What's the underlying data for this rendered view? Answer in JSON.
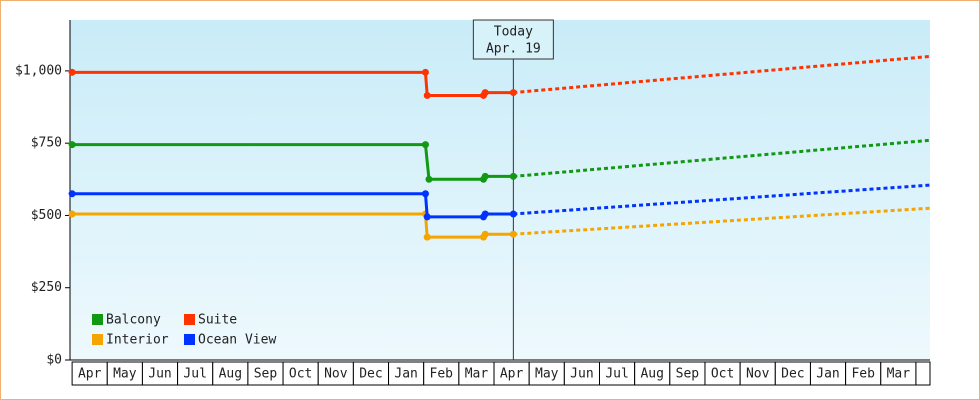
{
  "chart_data": {
    "type": "line",
    "categories": [
      "Apr",
      "May",
      "Jun",
      "Jul",
      "Aug",
      "Sep",
      "Oct",
      "Nov",
      "Dec",
      "Jan",
      "Feb",
      "Mar",
      "Apr",
      "May",
      "Jun",
      "Jul",
      "Aug",
      "Sep",
      "Oct",
      "Nov",
      "Dec",
      "Jan",
      "Feb",
      "Mar"
    ],
    "xlim": [
      -0.06,
      24.4
    ],
    "ylim": [
      0,
      1176
    ],
    "yticks": [
      {
        "value": 0,
        "label": "$0"
      },
      {
        "value": 250,
        "label": "$250"
      },
      {
        "value": 500,
        "label": "$500"
      },
      {
        "value": 750,
        "label": "$750"
      },
      {
        "value": 1000,
        "label": "$1,000"
      }
    ],
    "legend": "lower-left",
    "today": {
      "x": 12.55,
      "label": "Today",
      "date": "Apr. 19"
    },
    "series": [
      {
        "name": "Balcony",
        "color": "#119911",
        "x": [
          0,
          10.05,
          10.15,
          11.7,
          11.75,
          12.55
        ],
        "values": [
          745,
          745,
          625,
          625,
          635,
          635
        ],
        "forecast_x": [
          12.55,
          24.4
        ],
        "forecast_values": [
          635,
          760
        ]
      },
      {
        "name": "Suite",
        "color": "#ff3300",
        "x": [
          0,
          10.05,
          10.1,
          11.7,
          11.75,
          12.55
        ],
        "values": [
          995,
          995,
          915,
          915,
          925,
          925
        ],
        "forecast_x": [
          12.55,
          24.4
        ],
        "forecast_values": [
          925,
          1050
        ]
      },
      {
        "name": "Interior",
        "color": "#f5a500",
        "x": [
          0,
          10.05,
          10.1,
          11.7,
          11.75,
          12.55
        ],
        "values": [
          505,
          505,
          425,
          425,
          435,
          435
        ],
        "forecast_x": [
          12.55,
          24.4
        ],
        "forecast_values": [
          435,
          525
        ]
      },
      {
        "name": "Ocean View",
        "color": "#0033ff",
        "x": [
          0,
          10.05,
          10.1,
          11.7,
          11.75,
          12.55
        ],
        "values": [
          575,
          575,
          495,
          495,
          505,
          505
        ],
        "forecast_x": [
          12.55,
          24.4
        ],
        "forecast_values": [
          505,
          605
        ]
      }
    ]
  }
}
